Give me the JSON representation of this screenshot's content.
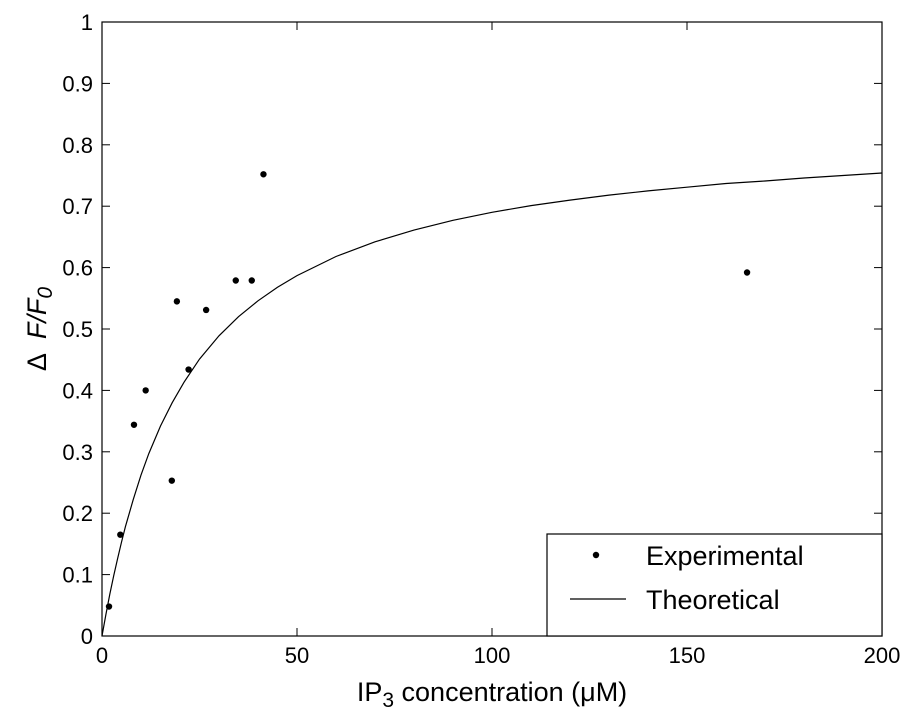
{
  "chart_data": {
    "type": "scatter",
    "xlabel": "IP",
    "xlabel_sub": "3",
    "xlabel_rest": " concentration (μM)",
    "ylabel_delta": "Δ",
    "ylabel_F": "F/F",
    "ylabel_sub": "0",
    "xlim": [
      0,
      200
    ],
    "ylim": [
      0,
      1
    ],
    "xticks": [
      0,
      50,
      100,
      150,
      200
    ],
    "yticks": [
      0,
      0.1,
      0.2,
      0.3,
      0.4,
      0.5,
      0.6,
      0.7,
      0.8,
      0.9,
      1
    ],
    "xtick_labels": [
      "0",
      "50",
      "100",
      "150",
      "200"
    ],
    "ytick_labels": [
      "0",
      "0.1",
      "0.2",
      "0.3",
      "0.4",
      "0.5",
      "0.6",
      "0.7",
      "0.8",
      "0.9",
      "1"
    ],
    "grid": false,
    "legend_position": "bottom-right",
    "series": [
      {
        "name": "Experimental",
        "kind": "scatter",
        "color": "#000000",
        "x": [
          1.8,
          4.7,
          8.2,
          11.2,
          17.9,
          19.2,
          22.2,
          26.7,
          34.3,
          38.4,
          41.4,
          165.4
        ],
        "y": [
          0.048,
          0.165,
          0.344,
          0.4,
          0.253,
          0.545,
          0.434,
          0.531,
          0.579,
          0.579,
          0.752,
          0.592
        ]
      },
      {
        "name": "Theoretical",
        "kind": "line",
        "color": "#000000",
        "x": [
          0,
          1,
          2,
          3,
          4,
          5,
          6,
          8,
          10,
          12,
          15,
          18,
          21,
          25,
          30,
          35,
          40,
          45,
          50,
          60,
          70,
          80,
          90,
          100,
          110,
          120,
          130,
          140,
          150,
          160,
          170,
          180,
          190,
          200
        ],
        "y": [
          0,
          0.035,
          0.068,
          0.098,
          0.126,
          0.153,
          0.178,
          0.222,
          0.262,
          0.297,
          0.342,
          0.38,
          0.413,
          0.451,
          0.489,
          0.52,
          0.546,
          0.568,
          0.587,
          0.618,
          0.642,
          0.661,
          0.677,
          0.69,
          0.701,
          0.71,
          0.718,
          0.725,
          0.731,
          0.737,
          0.741,
          0.746,
          0.75,
          0.754
        ]
      }
    ]
  }
}
